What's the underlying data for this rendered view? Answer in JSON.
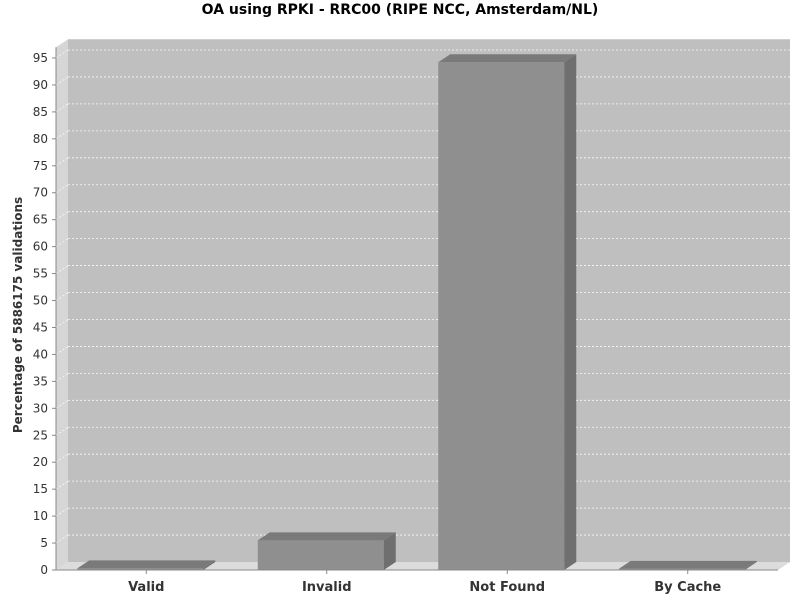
{
  "colors": {
    "background": "#ffffff",
    "plot_back": "#bfbfbf",
    "plot_left_wall": "#d6d6d6",
    "plot_floor": "#dcdcdc",
    "grid": "#ffffff",
    "bar_front": "#8f8f8f",
    "bar_side": "#6f6f6f",
    "bar_top": "#7a7a7a"
  },
  "chart_data": {
    "type": "bar",
    "title": "OA using RPKI - RRC00 (RIPE NCC, Amsterdam/NL)",
    "xlabel": "",
    "ylabel": "Percentage of 5886175 validations",
    "categories": [
      "Valid",
      "Invalid",
      "Not Found",
      "By Cache"
    ],
    "values": [
      0.3,
      5.5,
      94.2,
      0.2
    ],
    "ylim": [
      0,
      97
    ],
    "ytick_step": 5,
    "grid": true,
    "legend": "none",
    "style": "3d"
  }
}
